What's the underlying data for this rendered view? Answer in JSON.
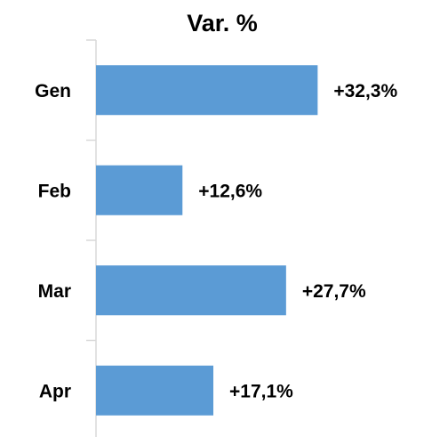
{
  "chart_data": {
    "type": "bar",
    "orientation": "horizontal",
    "title": "Var. %",
    "categories": [
      "Gen",
      "Feb",
      "Mar",
      "Apr"
    ],
    "values": [
      32.3,
      12.6,
      27.7,
      17.1
    ],
    "value_labels": [
      "+32,3%",
      "+12,6%",
      "+27,7%",
      "+17,1%"
    ],
    "color": "#5b9bd5"
  }
}
